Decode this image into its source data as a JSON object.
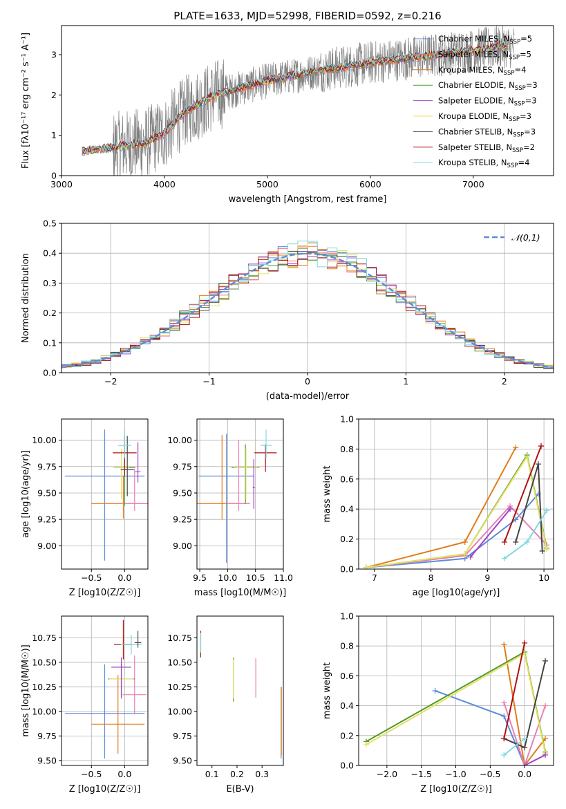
{
  "figure": {
    "title": "PLATE=1633, MJD=52998, FIBERID=0592, z=0.216",
    "legend_symbols": {
      "chi2_norm": "𝒩(0,1)"
    }
  },
  "chart_data": [
    {
      "id": "spectrum",
      "type": "line",
      "xlabel": "wavelength [Angstrom, rest frame]",
      "ylabel": "Flux [fλ10⁻¹⁷ erg cm⁻² s⁻¹ A⁻¹]",
      "xlim": [
        3000,
        7780
      ],
      "ylim": [
        0,
        3.72
      ],
      "xticks": [
        3000,
        4000,
        5000,
        6000,
        7000
      ],
      "yticks": [
        0,
        1,
        2,
        3
      ],
      "grid": false,
      "legend_position": "upper right",
      "data_series": {
        "name": "",
        "color": "#808080"
      },
      "model_continuum": {
        "x": [
          3200,
          3500,
          3800,
          4000,
          4200,
          4500,
          5000,
          5500,
          6000,
          6500,
          7000,
          7300
        ],
        "y": [
          0.6,
          0.7,
          0.8,
          1.05,
          1.6,
          2.0,
          2.35,
          2.6,
          2.8,
          2.95,
          3.1,
          3.2
        ]
      },
      "series": [
        {
          "name": "Chabrier MILES, N",
          "sub": "SSP",
          "suffix": "=5",
          "color": "#5b8bd9"
        },
        {
          "name": "Salpeter MILES, N",
          "sub": "SSP",
          "suffix": "=5",
          "color": "#ff6666"
        },
        {
          "name": "Kroupa MILES, N",
          "sub": "SSP",
          "suffix": "=4",
          "color": "#e07b1a"
        },
        {
          "name": "Chabrier ELODIE, N",
          "sub": "SSP",
          "suffix": "=3",
          "color": "#4f9a2e"
        },
        {
          "name": "Salpeter ELODIE, N",
          "sub": "SSP",
          "suffix": "=3",
          "color": "#a040c0"
        },
        {
          "name": "Kroupa ELODIE, N",
          "sub": "SSP",
          "suffix": "=3",
          "color": "#e8e060"
        },
        {
          "name": "Chabrier STELIB, N",
          "sub": "SSP",
          "suffix": "=3",
          "color": "#444444"
        },
        {
          "name": "Salpeter STELIB, N",
          "sub": "SSP",
          "suffix": "=2",
          "color": "#b01010"
        },
        {
          "name": "Kroupa STELIB, N",
          "sub": "SSP",
          "suffix": "=4",
          "color": "#7fd8e0"
        }
      ]
    },
    {
      "id": "residuals",
      "type": "line",
      "xlabel": "(data-model)/error",
      "ylabel": "Normed distribution",
      "xlim": [
        -2.5,
        2.5
      ],
      "ylim": [
        0,
        0.5
      ],
      "xticks": [
        -2,
        -1,
        0,
        1,
        2
      ],
      "yticks": [
        0.0,
        0.1,
        0.2,
        0.3,
        0.4,
        0.5
      ],
      "grid": true,
      "legend_position": "upper right",
      "gaussian": {
        "name": "N(0,1)",
        "color": "#5b8bd9"
      },
      "bin_width": 0.1,
      "step_colors": [
        "#5b8bd9",
        "#ff6666",
        "#e07b1a",
        "#4f9a2e",
        "#a040c0",
        "#e8e060",
        "#444444",
        "#b01010",
        "#7fd8e0"
      ]
    },
    {
      "id": "age_vs_Z",
      "type": "scatter",
      "xlabel": "Z [log10(Z/Z☉)]",
      "ylabel": "age  [log10(age/yr)]",
      "xlim": [
        -0.95,
        0.35
      ],
      "ylim": [
        8.78,
        10.2
      ],
      "xticks": [
        -0.5,
        0.0
      ],
      "yticks": [
        9.0,
        9.25,
        9.5,
        9.75,
        10.0
      ],
      "grid": true,
      "points": [
        {
          "x": -0.3,
          "y": 9.66,
          "xerr": 0.6,
          "yerr": [
            0.8,
            0.44
          ],
          "color": "#5b8bd9"
        },
        {
          "x": -0.02,
          "y": 9.4,
          "xerr": 0.48,
          "yerr": [
            0.14,
            0.26
          ],
          "color": "#e07b1a"
        },
        {
          "x": 0.15,
          "y": 9.4,
          "xerr": 0.18,
          "yerr": [
            0.07,
            0.33
          ],
          "color": "#e87fb5"
        },
        {
          "x": 0.0,
          "y": 9.74,
          "xerr": 0.16,
          "yerr": [
            0.36,
            0.2
          ],
          "color": "#4f9a2e"
        },
        {
          "x": -0.05,
          "y": 9.74,
          "xerr": 0.12,
          "yerr": [
            0.3,
            0.18
          ],
          "color": "#e8e060"
        },
        {
          "x": 0.04,
          "y": 9.72,
          "xerr": 0.1,
          "yerr": [
            0.25,
            0.32
          ],
          "color": "#444444"
        },
        {
          "x": 0.0,
          "y": 9.88,
          "xerr": 0.18,
          "yerr": [
            0.22,
            0.16
          ],
          "color": "#b01010"
        },
        {
          "x": 0.0,
          "y": 9.95,
          "xerr": 0.1,
          "yerr": [
            0.12,
            0.15
          ],
          "color": "#7fd8e0"
        },
        {
          "x": 0.2,
          "y": 9.7,
          "xerr": 0.04,
          "yerr": [
            0.1,
            0.28
          ],
          "color": "#a040c0"
        }
      ]
    },
    {
      "id": "age_vs_mass",
      "type": "scatter",
      "xlabel": "mass [log10(M/M☉)]",
      "ylabel": "",
      "xlim": [
        9.45,
        11.0
      ],
      "ylim": [
        8.78,
        10.2
      ],
      "xticks": [
        9.5,
        10.0,
        10.5,
        11.0
      ],
      "yticks": [
        9.0,
        9.25,
        9.5,
        9.75,
        10.0
      ],
      "grid": true,
      "points": [
        {
          "x": 9.98,
          "y": 9.66,
          "xerr": 0.5,
          "yerr": [
            0.82,
            0.4
          ],
          "color": "#5b8bd9"
        },
        {
          "x": 9.9,
          "y": 9.4,
          "xerr": 0.5,
          "yerr": [
            0.15,
            0.65
          ],
          "color": "#e07b1a"
        },
        {
          "x": 10.2,
          "y": 9.4,
          "xerr": 0.2,
          "yerr": [
            0.07,
            0.6
          ],
          "color": "#e87fb5"
        },
        {
          "x": 10.32,
          "y": 9.74,
          "xerr": 0.25,
          "yerr": [
            0.34,
            0.22
          ],
          "color": "#4f9a2e"
        },
        {
          "x": 10.33,
          "y": 9.74,
          "xerr": 0.22,
          "yerr": [
            0.3,
            0.18
          ],
          "color": "#e8e060"
        },
        {
          "x": 10.47,
          "y": 9.55,
          "xerr": 0.02,
          "yerr": [
            0.2,
            0.27
          ],
          "color": "#a040c0"
        },
        {
          "x": 10.68,
          "y": 9.88,
          "xerr": 0.2,
          "yerr": [
            0.18,
            0.08
          ],
          "color": "#b01010"
        },
        {
          "x": 10.69,
          "y": 9.95,
          "xerr": 0.1,
          "yerr": [
            0.12,
            0.15
          ],
          "color": "#7fd8e0"
        }
      ]
    },
    {
      "id": "weight_vs_age",
      "type": "line",
      "xlabel": "age  [log10(age/yr)]",
      "ylabel": "mass weight",
      "xlim": [
        6.72,
        10.17
      ],
      "ylim": [
        0,
        1.0
      ],
      "xticks": [
        7,
        8,
        9,
        10
      ],
      "yticks": [
        0.0,
        0.2,
        0.4,
        0.6,
        0.8,
        1.0
      ],
      "grid": true,
      "series": [
        {
          "color": "#5b8bd9",
          "x": [
            6.85,
            8.6,
            9.5,
            9.9
          ],
          "y": [
            0.01,
            0.07,
            0.33,
            0.5
          ]
        },
        {
          "color": "#e07b1a",
          "x": [
            6.85,
            8.6,
            9.5
          ],
          "y": [
            0.01,
            0.18,
            0.81
          ]
        },
        {
          "color": "#e87fb5",
          "x": [
            6.85,
            8.6,
            9.4,
            10.05
          ],
          "y": [
            0.01,
            0.09,
            0.42,
            0.16
          ]
        },
        {
          "color": "#4f9a2e",
          "x": [
            6.85,
            8.6,
            9.7,
            10.05
          ],
          "y": [
            0.01,
            0.1,
            0.76,
            0.14
          ]
        },
        {
          "color": "#e8e060",
          "x": [
            6.85,
            8.6,
            9.7,
            10.05
          ],
          "y": [
            0.01,
            0.1,
            0.75,
            0.13
          ]
        },
        {
          "color": "#444444",
          "x": [
            9.5,
            9.9,
            9.97
          ],
          "y": [
            0.18,
            0.7,
            0.12
          ]
        },
        {
          "color": "#b01010",
          "x": [
            9.3,
            9.95
          ],
          "y": [
            0.18,
            0.82
          ]
        },
        {
          "color": "#7fd8e0",
          "x": [
            9.3,
            9.7,
            10.05
          ],
          "y": [
            0.07,
            0.18,
            0.39
          ]
        },
        {
          "color": "#a040c0",
          "x": [
            8.7,
            9.4
          ],
          "y": [
            0.08,
            0.4
          ]
        }
      ]
    },
    {
      "id": "mass_vs_Z",
      "type": "scatter",
      "xlabel": "Z [log10(Z/Z☉)]",
      "ylabel": "mass [log10(M/M☉)]",
      "xlim": [
        -0.95,
        0.35
      ],
      "ylim": [
        9.45,
        10.97
      ],
      "xticks": [
        -0.5,
        0.0
      ],
      "yticks": [
        9.5,
        9.75,
        10.0,
        10.25,
        10.5,
        10.75
      ],
      "grid": true,
      "points": [
        {
          "x": -0.3,
          "y": 9.98,
          "xerr": 0.6,
          "yerr": [
            0.46,
            0.5
          ],
          "color": "#5b8bd9"
        },
        {
          "x": -0.1,
          "y": 9.87,
          "xerr": 0.4,
          "yerr": [
            0.3,
            0.5
          ],
          "color": "#e07b1a"
        },
        {
          "x": 0.15,
          "y": 10.17,
          "xerr": 0.18,
          "yerr": [
            0.2,
            0.4
          ],
          "color": "#e87fb5"
        },
        {
          "x": -0.05,
          "y": 10.33,
          "xerr": 0.2,
          "yerr": [
            0.2,
            0.15
          ],
          "color": "#4f9a2e"
        },
        {
          "x": -0.05,
          "y": 10.33,
          "xerr": 0.18,
          "yerr": [
            0.15,
            0.12
          ],
          "color": "#e8e060"
        },
        {
          "x": -0.05,
          "y": 10.45,
          "xerr": 0.15,
          "yerr": [
            0.3,
            0.1
          ],
          "color": "#a040c0"
        },
        {
          "x": -0.02,
          "y": 10.68,
          "xerr": 0.14,
          "yerr": [
            0.15,
            0.25
          ],
          "color": "#b01010"
        },
        {
          "x": 0.1,
          "y": 10.68,
          "xerr": 0.16,
          "yerr": [
            0.1,
            0.1
          ],
          "color": "#7fd8e0"
        },
        {
          "x": 0.2,
          "y": 10.7,
          "xerr": 0.05,
          "yerr": [
            0.05,
            0.12
          ],
          "color": "#444444"
        }
      ]
    },
    {
      "id": "mass_vs_ebv",
      "type": "scatter",
      "xlabel": "E(B-V)",
      "ylabel": "",
      "xlim": [
        0.04,
        0.385
      ],
      "ylim": [
        9.45,
        10.97
      ],
      "xticks": [
        0.1,
        0.2,
        0.3
      ],
      "yticks": [
        9.5,
        9.75,
        10.0,
        10.25,
        10.5,
        10.75
      ],
      "grid": false,
      "points": [
        {
          "x": 0.055,
          "y": 10.7,
          "yerr": [
            0.15,
            0.12
          ],
          "color": "#b01010"
        },
        {
          "x": 0.055,
          "y": 10.7,
          "yerr": [
            0.1,
            0.1
          ],
          "color": "#7fd8e0"
        },
        {
          "x": 0.186,
          "y": 10.35,
          "yerr": [
            0.25,
            0.2
          ],
          "color": "#4f9a2e"
        },
        {
          "x": 0.186,
          "y": 10.35,
          "yerr": [
            0.22,
            0.18
          ],
          "color": "#e8e060"
        },
        {
          "x": 0.275,
          "y": 10.34,
          "yerr": [
            0.2,
            0.2
          ],
          "color": "#e87fb5"
        },
        {
          "x": 0.376,
          "y": 9.9,
          "yerr": [
            0.38,
            0.35
          ],
          "color": "#5b8bd9"
        },
        {
          "x": 0.377,
          "y": 9.9,
          "yerr": [
            0.35,
            0.35
          ],
          "color": "#e07b1a"
        }
      ]
    },
    {
      "id": "weight_vs_Z",
      "type": "line",
      "xlabel": "Z [log10(Z/Z☉)]",
      "ylabel": "mass weight",
      "xlim": [
        -2.41,
        0.42
      ],
      "ylim": [
        0,
        1.0
      ],
      "xticks": [
        -2.0,
        -1.5,
        -1.0,
        -0.5,
        0.0
      ],
      "yticks": [
        0.0,
        0.2,
        0.4,
        0.6,
        0.8,
        1.0
      ],
      "grid": true,
      "series": [
        {
          "color": "#5b8bd9",
          "x": [
            -1.3,
            -0.3,
            0.0
          ],
          "y": [
            0.5,
            0.33,
            0.0
          ]
        },
        {
          "color": "#e07b1a",
          "x": [
            -0.3,
            0.0,
            0.3
          ],
          "y": [
            0.81,
            0.0,
            0.18
          ]
        },
        {
          "color": "#e87fb5",
          "x": [
            -0.3,
            0.0,
            0.3
          ],
          "y": [
            0.42,
            0.0,
            0.4
          ]
        },
        {
          "color": "#4f9a2e",
          "x": [
            -2.3,
            0.0,
            0.3
          ],
          "y": [
            0.16,
            0.76,
            0.09
          ]
        },
        {
          "color": "#e8e060",
          "x": [
            -2.3,
            0.0,
            0.3
          ],
          "y": [
            0.14,
            0.75,
            0.08
          ]
        },
        {
          "color": "#444444",
          "x": [
            -0.3,
            0.0,
            0.3
          ],
          "y": [
            0.18,
            0.12,
            0.7
          ]
        },
        {
          "color": "#b01010",
          "x": [
            -0.3,
            0.0
          ],
          "y": [
            0.18,
            0.82
          ]
        },
        {
          "color": "#7fd8e0",
          "x": [
            -0.3,
            0.0
          ],
          "y": [
            0.07,
            0.18
          ]
        },
        {
          "color": "#a040c0",
          "x": [
            0.0,
            0.3
          ],
          "y": [
            0.0,
            0.07
          ]
        }
      ]
    }
  ]
}
